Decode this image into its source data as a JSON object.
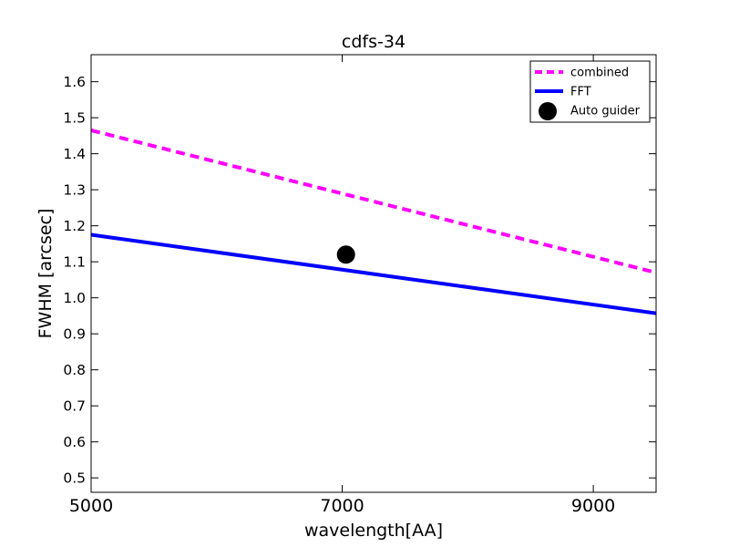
{
  "chart_data": {
    "type": "line",
    "title": "cdfs-34",
    "xlabel": "wavelength[AA]",
    "ylabel": "FWHM [arcsec]",
    "xlim": [
      5000,
      9500
    ],
    "ylim": [
      0.46,
      1.675
    ],
    "x_ticks": [
      5000,
      7000,
      9000
    ],
    "x_tick_labels": [
      "5000",
      "7000",
      "9000"
    ],
    "y_ticks": [
      0.5,
      0.6,
      0.7,
      0.8,
      0.9,
      1.0,
      1.1,
      1.2,
      1.3,
      1.4,
      1.5,
      1.6
    ],
    "y_tick_labels": [
      "0.5",
      "0.6",
      "0.7",
      "0.8",
      "0.9",
      "1.0",
      "1.1",
      "1.2",
      "1.3",
      "1.4",
      "1.5",
      "1.6"
    ],
    "grid": false,
    "legend_position": "top-right",
    "series": [
      {
        "name": "combined",
        "kind": "line",
        "style": "dashed",
        "color": "#ff00ff",
        "x": [
          5000,
          9500
        ],
        "y": [
          1.465,
          1.07
        ]
      },
      {
        "name": "FFT",
        "kind": "line",
        "style": "solid",
        "color": "#0000ff",
        "x": [
          5000,
          9500
        ],
        "y": [
          1.175,
          0.957
        ]
      },
      {
        "name": "Auto guider",
        "kind": "marker",
        "color": "#000000",
        "x": [
          7030
        ],
        "y": [
          1.12
        ]
      }
    ]
  }
}
